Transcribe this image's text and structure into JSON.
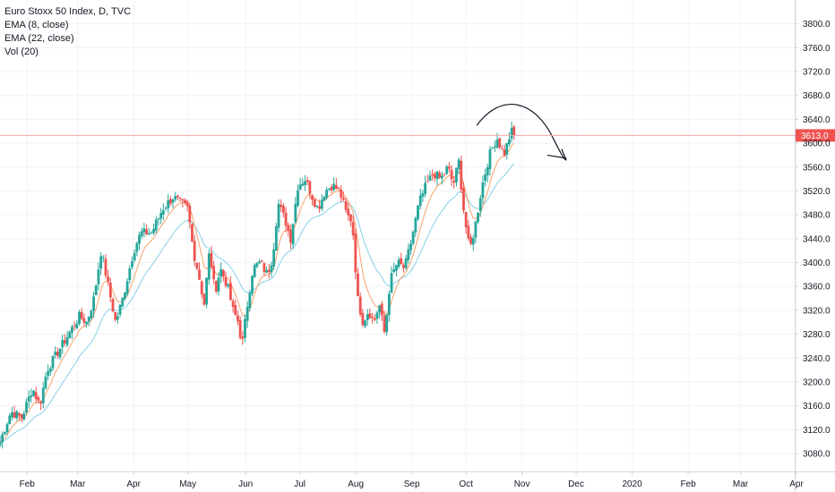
{
  "legend": {
    "line1": "Euro Stoxx 50 Index, D, TVC",
    "line2": "EMA (8, close)",
    "line3": "EMA (22, close)",
    "line4": "Vol (20)"
  },
  "colors": {
    "up": "#26a69a",
    "down": "#ef5350",
    "ema8": "#f7a26a",
    "ema22": "#84d2e6",
    "price_line": "#f4a8a8",
    "badge": "#ef5350",
    "grid": "#f0f3fa",
    "axis_border": "#d1d4dc",
    "drawing": "#131722"
  },
  "chart_data": {
    "type": "candlestick",
    "symbol": "Euro Stoxx 50 Index",
    "interval": "D",
    "source": "TVC",
    "ylim": [
      3050,
      3840
    ],
    "y_ticks": [
      3080,
      3120,
      3160,
      3200,
      3240,
      3280,
      3320,
      3360,
      3400,
      3440,
      3480,
      3520,
      3560,
      3600,
      3640,
      3680,
      3720,
      3760,
      3800
    ],
    "y_tick_labels": [
      "3080.0",
      "3120.0",
      "3160.0",
      "3200.0",
      "3240.0",
      "3280.0",
      "3320.0",
      "3360.0",
      "3400.0",
      "3440.0",
      "3480.0",
      "3520.0",
      "3560.0",
      "3600.0",
      "3640.0",
      "3680.0",
      "3720.0",
      "3760.0",
      "3800.0"
    ],
    "x_range": [
      0,
      440
    ],
    "x_ticks": [
      {
        "label": "Feb",
        "x": 15
      },
      {
        "label": "Mar",
        "x": 43
      },
      {
        "label": "Apr",
        "x": 74
      },
      {
        "label": "May",
        "x": 104
      },
      {
        "label": "Jun",
        "x": 136
      },
      {
        "label": "Jul",
        "x": 166
      },
      {
        "label": "Aug",
        "x": 197
      },
      {
        "label": "Sep",
        "x": 228
      },
      {
        "label": "Oct",
        "x": 258
      },
      {
        "label": "Nov",
        "x": 289
      },
      {
        "label": "Dec",
        "x": 319
      },
      {
        "label": "2020",
        "x": 350
      },
      {
        "label": "Feb",
        "x": 381
      },
      {
        "label": "Mar",
        "x": 410
      },
      {
        "label": "Apr",
        "x": 441
      }
    ],
    "last_price": 3613,
    "last_price_label": "3613.0",
    "close_path": [
      [
        0,
        3100
      ],
      [
        6,
        3150
      ],
      [
        12,
        3140
      ],
      [
        18,
        3190
      ],
      [
        22,
        3160
      ],
      [
        26,
        3220
      ],
      [
        32,
        3250
      ],
      [
        38,
        3280
      ],
      [
        44,
        3310
      ],
      [
        48,
        3300
      ],
      [
        52,
        3340
      ],
      [
        56,
        3420
      ],
      [
        60,
        3360
      ],
      [
        64,
        3300
      ],
      [
        68,
        3340
      ],
      [
        74,
        3420
      ],
      [
        78,
        3450
      ],
      [
        84,
        3450
      ],
      [
        90,
        3490
      ],
      [
        96,
        3510
      ],
      [
        100,
        3500
      ],
      [
        104,
        3490
      ],
      [
        107,
        3420
      ],
      [
        110,
        3380
      ],
      [
        113,
        3330
      ],
      [
        116,
        3420
      ],
      [
        119,
        3350
      ],
      [
        122,
        3390
      ],
      [
        126,
        3360
      ],
      [
        129,
        3320
      ],
      [
        132,
        3300
      ],
      [
        134,
        3260
      ],
      [
        137,
        3330
      ],
      [
        140,
        3390
      ],
      [
        144,
        3400
      ],
      [
        148,
        3380
      ],
      [
        151,
        3410
      ],
      [
        154,
        3500
      ],
      [
        158,
        3470
      ],
      [
        161,
        3440
      ],
      [
        165,
        3530
      ],
      [
        169,
        3540
      ],
      [
        173,
        3510
      ],
      [
        176,
        3490
      ],
      [
        180,
        3520
      ],
      [
        184,
        3530
      ],
      [
        188,
        3520
      ],
      [
        192,
        3480
      ],
      [
        195,
        3470
      ],
      [
        198,
        3340
      ],
      [
        201,
        3300
      ],
      [
        204,
        3320
      ],
      [
        207,
        3300
      ],
      [
        210,
        3330
      ],
      [
        213,
        3280
      ],
      [
        216,
        3370
      ],
      [
        220,
        3400
      ],
      [
        224,
        3390
      ],
      [
        228,
        3440
      ],
      [
        232,
        3500
      ],
      [
        236,
        3530
      ],
      [
        240,
        3550
      ],
      [
        244,
        3540
      ],
      [
        248,
        3560
      ],
      [
        251,
        3530
      ],
      [
        254,
        3570
      ],
      [
        257,
        3480
      ],
      [
        260,
        3420
      ],
      [
        263,
        3460
      ],
      [
        267,
        3530
      ],
      [
        271,
        3580
      ],
      [
        275,
        3610
      ],
      [
        279,
        3580
      ],
      [
        283,
        3620
      ],
      [
        285,
        3613
      ]
    ],
    "annotation_arc": {
      "points": [
        [
          264,
          3630
        ],
        [
          278,
          3660
        ],
        [
          296,
          3650
        ],
        [
          306,
          3610
        ],
        [
          313,
          3575
        ]
      ],
      "arrow_head": [
        [
          303,
          3580
        ],
        [
          313,
          3575
        ],
        [
          311,
          3590
        ]
      ]
    }
  }
}
